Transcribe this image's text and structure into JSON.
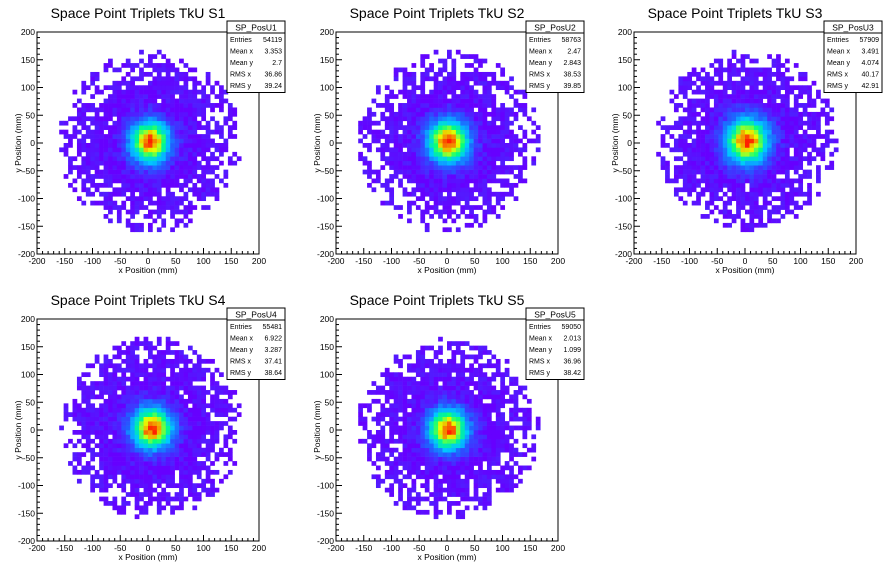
{
  "chart_data": [
    {
      "type": "heatmap",
      "title": "Space Point Triplets TkU S1",
      "xlabel": "x Position (mm)",
      "ylabel": "y Position (mm)",
      "xlim": [
        -200,
        200
      ],
      "ylim": [
        -200,
        200
      ],
      "xticks": [
        -200,
        -150,
        -100,
        -50,
        0,
        50,
        100,
        150,
        200
      ],
      "yticks": [
        -200,
        -150,
        -100,
        -50,
        0,
        50,
        100,
        150,
        200
      ],
      "grid": false,
      "colormap": [
        "#6600ff",
        "#2060ff",
        "#00c8ff",
        "#00ff80",
        "#e6ff00",
        "#ff2000"
      ],
      "distribution": {
        "center": [
          3.353,
          2.7
        ],
        "sigma": [
          36.86,
          39.24
        ],
        "radius": 160
      },
      "stats": {
        "name": "SP_PosU1",
        "rows": [
          {
            "label": "Entries",
            "value": "54119"
          },
          {
            "label": "Mean x",
            "value": "3.353"
          },
          {
            "label": "Mean y",
            "value": "2.7"
          },
          {
            "label": "RMS x",
            "value": "36.86"
          },
          {
            "label": "RMS y",
            "value": "39.24"
          }
        ]
      }
    },
    {
      "type": "heatmap",
      "title": "Space Point Triplets TkU S2",
      "xlabel": "x Position (mm)",
      "ylabel": "y Position (mm)",
      "xlim": [
        -200,
        200
      ],
      "ylim": [
        -200,
        200
      ],
      "xticks": [
        -200,
        -150,
        -100,
        -50,
        0,
        50,
        100,
        150,
        200
      ],
      "yticks": [
        -200,
        -150,
        -100,
        -50,
        0,
        50,
        100,
        150,
        200
      ],
      "grid": false,
      "colormap": [
        "#6600ff",
        "#2060ff",
        "#00c8ff",
        "#00ff80",
        "#e6ff00",
        "#ff2000"
      ],
      "distribution": {
        "center": [
          2.47,
          2.843
        ],
        "sigma": [
          38.53,
          39.85
        ],
        "radius": 160
      },
      "stats": {
        "name": "SP_PosU2",
        "rows": [
          {
            "label": "Entries",
            "value": "58763"
          },
          {
            "label": "Mean x",
            "value": "2.47"
          },
          {
            "label": "Mean y",
            "value": "2.843"
          },
          {
            "label": "RMS x",
            "value": "38.53"
          },
          {
            "label": "RMS y",
            "value": "39.85"
          }
        ]
      }
    },
    {
      "type": "heatmap",
      "title": "Space Point Triplets TkU S3",
      "xlabel": "x Position (mm)",
      "ylabel": "y Position (mm)",
      "xlim": [
        -200,
        200
      ],
      "ylim": [
        -200,
        200
      ],
      "xticks": [
        -200,
        -150,
        -100,
        -50,
        0,
        50,
        100,
        150,
        200
      ],
      "yticks": [
        -200,
        -150,
        -100,
        -50,
        0,
        50,
        100,
        150,
        200
      ],
      "grid": false,
      "colormap": [
        "#6600ff",
        "#2060ff",
        "#00c8ff",
        "#00ff80",
        "#e6ff00",
        "#ff2000"
      ],
      "distribution": {
        "center": [
          3.491,
          4.074
        ],
        "sigma": [
          40.17,
          42.91
        ],
        "radius": 160
      },
      "stats": {
        "name": "SP_PosU3",
        "rows": [
          {
            "label": "Entries",
            "value": "57909"
          },
          {
            "label": "Mean x",
            "value": "3.491"
          },
          {
            "label": "Mean y",
            "value": "4.074"
          },
          {
            "label": "RMS x",
            "value": "40.17"
          },
          {
            "label": "RMS y",
            "value": "42.91"
          }
        ]
      }
    },
    {
      "type": "heatmap",
      "title": "Space Point Triplets TkU S4",
      "xlabel": "x Position (mm)",
      "ylabel": "y Position (mm)",
      "xlim": [
        -200,
        200
      ],
      "ylim": [
        -200,
        200
      ],
      "xticks": [
        -200,
        -150,
        -100,
        -50,
        0,
        50,
        100,
        150,
        200
      ],
      "yticks": [
        -200,
        -150,
        -100,
        -50,
        0,
        50,
        100,
        150,
        200
      ],
      "grid": false,
      "colormap": [
        "#6600ff",
        "#2060ff",
        "#00c8ff",
        "#00ff80",
        "#e6ff00",
        "#ff2000"
      ],
      "distribution": {
        "center": [
          6.922,
          3.287
        ],
        "sigma": [
          37.41,
          38.64
        ],
        "radius": 160
      },
      "stats": {
        "name": "SP_PosU4",
        "rows": [
          {
            "label": "Entries",
            "value": "55481"
          },
          {
            "label": "Mean x",
            "value": "6.922"
          },
          {
            "label": "Mean y",
            "value": "3.287"
          },
          {
            "label": "RMS x",
            "value": "37.41"
          },
          {
            "label": "RMS y",
            "value": "38.64"
          }
        ]
      }
    },
    {
      "type": "heatmap",
      "title": "Space Point Triplets TkU S5",
      "xlabel": "x Position (mm)",
      "ylabel": "y Position (mm)",
      "xlim": [
        -200,
        200
      ],
      "ylim": [
        -200,
        200
      ],
      "xticks": [
        -200,
        -150,
        -100,
        -50,
        0,
        50,
        100,
        150,
        200
      ],
      "yticks": [
        -200,
        -150,
        -100,
        -50,
        0,
        50,
        100,
        150,
        200
      ],
      "grid": false,
      "colormap": [
        "#6600ff",
        "#2060ff",
        "#00c8ff",
        "#00ff80",
        "#e6ff00",
        "#ff2000"
      ],
      "distribution": {
        "center": [
          2.013,
          1.099
        ],
        "sigma": [
          36.96,
          38.42
        ],
        "radius": 160
      },
      "stats": {
        "name": "SP_PosU5",
        "rows": [
          {
            "label": "Entries",
            "value": "59050"
          },
          {
            "label": "Mean x",
            "value": "2.013"
          },
          {
            "label": "Mean y",
            "value": "1.099"
          },
          {
            "label": "RMS x",
            "value": "36.96"
          },
          {
            "label": "RMS y",
            "value": "38.42"
          }
        ]
      }
    }
  ]
}
